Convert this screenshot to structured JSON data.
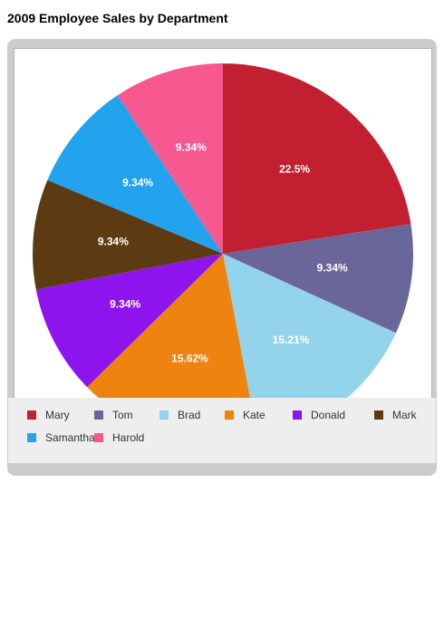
{
  "page": {
    "title": "2009 Employee Sales by Department"
  },
  "chart_data": {
    "type": "pie",
    "title": "2009 Employee Sales by Department",
    "categories": [
      "Mary",
      "Tom",
      "Brad",
      "Kate",
      "Donald",
      "Mark",
      "Samantha",
      "Harold"
    ],
    "values": [
      22.5,
      9.34,
      15.21,
      15.62,
      9.34,
      9.34,
      9.34,
      9.34
    ],
    "labels": [
      "22.5%",
      "9.34%",
      "15.21%",
      "15.62%",
      "9.34%",
      "9.34%",
      "9.34%",
      "9.34%"
    ],
    "colors": [
      "#c21f30",
      "#6a6699",
      "#93d4ec",
      "#ef8310",
      "#8e14ee",
      "#5d3b12",
      "#23a3ee",
      "#f6588f"
    ],
    "legend_position": "bottom"
  }
}
